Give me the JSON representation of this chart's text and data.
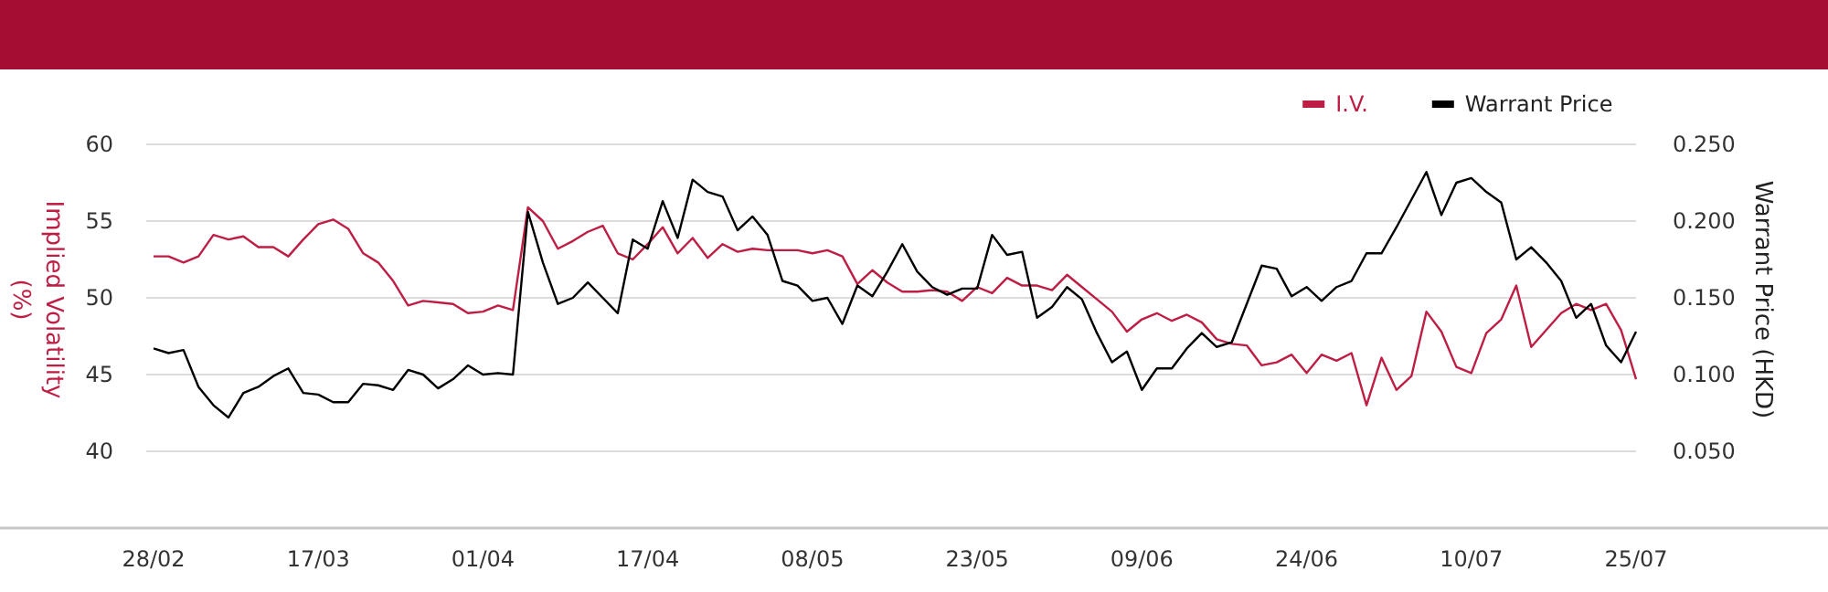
{
  "chart_data": {
    "type": "line",
    "ylabel": "Implied Volatility (%)",
    "y2label": "Warrant Price (HKD)",
    "categories": [
      "28/02",
      null,
      null,
      null,
      null,
      null,
      null,
      null,
      null,
      null,
      null,
      "17/03",
      null,
      null,
      null,
      null,
      null,
      null,
      null,
      null,
      null,
      null,
      "01/04",
      null,
      null,
      null,
      null,
      null,
      null,
      null,
      null,
      null,
      null,
      "17/04",
      null,
      null,
      null,
      null,
      null,
      null,
      null,
      null,
      null,
      null,
      "08/05",
      null,
      null,
      null,
      null,
      null,
      null,
      null,
      null,
      null,
      null,
      "23/05",
      null,
      null,
      null,
      null,
      null,
      null,
      null,
      null,
      null,
      null,
      "09/06",
      null,
      null,
      null,
      null,
      null,
      null,
      null,
      null,
      null,
      null,
      "24/06",
      null,
      null,
      null,
      null,
      null,
      null,
      null,
      null,
      null,
      null,
      "10/07",
      null,
      null,
      null,
      null,
      null,
      null,
      null,
      null,
      null,
      null,
      "25/07"
    ],
    "series": [
      {
        "name": "I.V.",
        "color": "#be1e44",
        "values": [
          52.7,
          52.7,
          52.3,
          52.7,
          54.1,
          53.8,
          54.0,
          53.3,
          53.3,
          52.7,
          53.8,
          54.8,
          55.1,
          54.5,
          52.9,
          52.3,
          51.1,
          49.5,
          49.8,
          49.7,
          49.6,
          49.0,
          49.1,
          49.5,
          49.2,
          55.9,
          55.0,
          53.2,
          53.7,
          54.3,
          54.7,
          52.9,
          52.5,
          53.5,
          54.6,
          52.9,
          53.9,
          52.6,
          53.5,
          53.0,
          53.2,
          53.1,
          53.1,
          53.1,
          52.9,
          53.1,
          52.7,
          50.9,
          51.8,
          51.0,
          50.4,
          50.4,
          50.5,
          50.4,
          49.8,
          50.7,
          50.3,
          51.3,
          50.8,
          50.8,
          50.5,
          51.5,
          50.7,
          49.9,
          49.1,
          47.8,
          48.6,
          49.0,
          48.5,
          48.9,
          48.4,
          47.3,
          47.0,
          46.9,
          45.6,
          45.8,
          46.3,
          45.1,
          46.3,
          45.9,
          46.4,
          43.0,
          46.1,
          44.0,
          44.9,
          49.1,
          47.8,
          45.5,
          45.1,
          47.7,
          48.6,
          50.8,
          46.8,
          47.9,
          49.0,
          49.6,
          49.2,
          49.6,
          47.9,
          44.7
        ]
      },
      {
        "name": "Warrant Price",
        "color": "#000000",
        "axis": "y2",
        "values": [
          0.117,
          0.114,
          0.116,
          0.092,
          0.08,
          0.072,
          0.088,
          0.092,
          0.099,
          0.104,
          0.088,
          0.087,
          0.082,
          0.082,
          0.094,
          0.093,
          0.09,
          0.103,
          0.1,
          0.091,
          0.097,
          0.106,
          0.1,
          0.101,
          0.1,
          0.206,
          0.173,
          0.146,
          0.15,
          0.16,
          0.15,
          0.14,
          0.188,
          0.182,
          0.213,
          0.189,
          0.227,
          0.219,
          0.216,
          0.194,
          0.203,
          0.191,
          0.161,
          0.158,
          0.148,
          0.15,
          0.133,
          0.158,
          0.151,
          0.167,
          0.185,
          0.167,
          0.157,
          0.152,
          0.156,
          0.156,
          0.191,
          0.178,
          0.18,
          0.137,
          0.144,
          0.157,
          0.149,
          0.127,
          0.108,
          0.115,
          0.09,
          0.104,
          0.104,
          0.117,
          0.127,
          0.118,
          0.121,
          0.146,
          0.171,
          0.169,
          0.151,
          0.157,
          0.148,
          0.157,
          0.161,
          0.179,
          0.179,
          0.196,
          0.214,
          0.232,
          0.204,
          0.225,
          0.228,
          0.219,
          0.212,
          0.175,
          0.183,
          0.173,
          0.161,
          0.137,
          0.146,
          0.119,
          0.108,
          0.128
        ]
      }
    ],
    "ylim": [
      35,
      60
    ],
    "yticks": [
      40,
      45,
      50,
      55,
      60
    ],
    "y2lim": [
      0,
      0.25
    ],
    "y2ticks": [
      {
        "value": 0.05,
        "label": "0.050"
      },
      {
        "value": 0.1,
        "label": "0.100"
      },
      {
        "value": 0.15,
        "label": "0.150"
      },
      {
        "value": 0.2,
        "label": "0.200"
      },
      {
        "value": 0.25,
        "label": "0.250"
      }
    ],
    "grid": "y",
    "legend": "top right",
    "marker": "none",
    "line_style": "solid"
  }
}
